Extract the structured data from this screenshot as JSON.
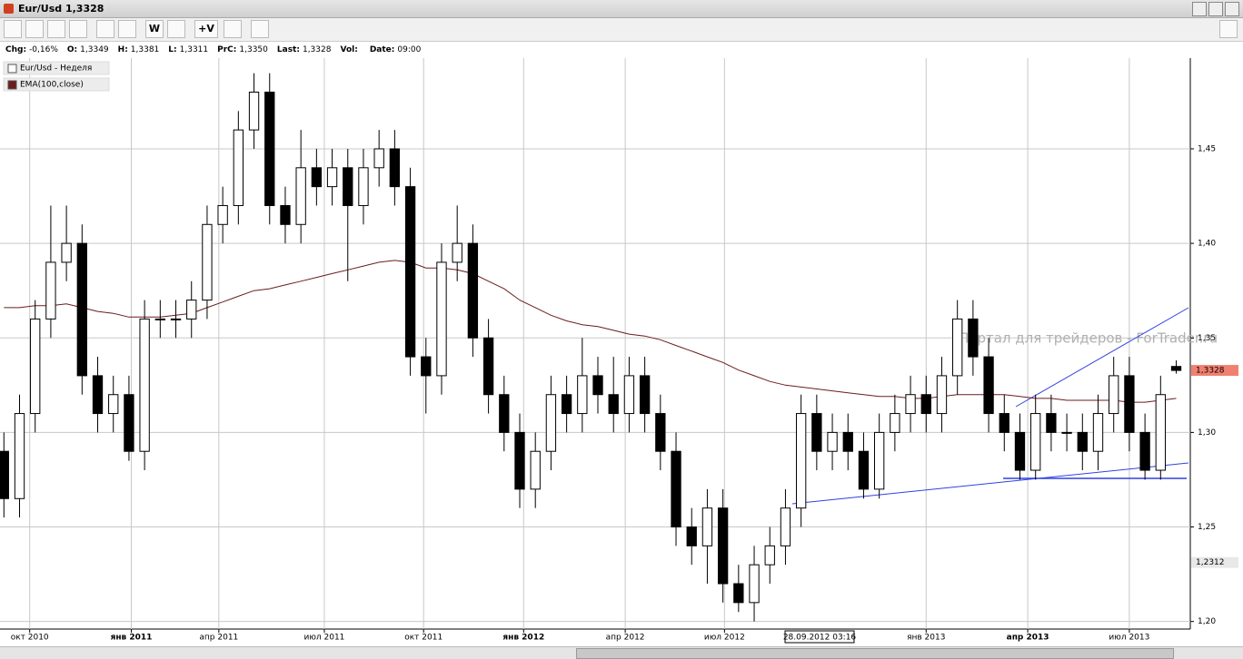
{
  "window": {
    "title": "Eur/Usd 1,3328"
  },
  "toolbar": {
    "buttons": [
      "W",
      "+V"
    ]
  },
  "info": [
    {
      "label": "Chg:",
      "value": "-0,16%"
    },
    {
      "label": "O:",
      "value": "1,3349"
    },
    {
      "label": "H:",
      "value": "1,3381"
    },
    {
      "label": "L:",
      "value": "1,3311"
    },
    {
      "label": "PrC:",
      "value": "1,3350"
    },
    {
      "label": "Last:",
      "value": "1,3328"
    },
    {
      "label": "Vol:"
    },
    {
      "label": "Date:",
      "value": "09:00"
    }
  ],
  "watermark": "Портал для трейдеров - ForTrader.ru",
  "cursor_label": "28.09.2012 03:16",
  "chart_data": {
    "type": "candlestick",
    "name": "Eur/Usd - Неделя",
    "up_color": "#ffffff",
    "down_color": "#000000",
    "x": [
      0,
      2,
      4,
      6,
      8,
      10,
      12,
      14,
      16,
      18,
      20,
      22,
      24,
      26,
      28,
      30,
      32,
      34,
      36,
      38,
      40,
      42,
      44,
      46,
      48,
      50,
      52,
      54,
      56,
      58,
      60,
      62,
      64,
      66,
      68,
      70,
      72,
      74,
      76,
      78,
      80,
      82,
      84,
      86,
      88,
      90,
      92,
      94,
      96,
      98,
      100,
      102,
      104,
      106,
      108,
      110,
      112,
      114,
      116,
      118,
      120,
      122,
      124,
      126,
      128,
      130,
      132,
      134,
      136,
      138,
      140,
      142,
      144,
      146,
      148,
      150
    ],
    "open": [
      1.29,
      1.265,
      1.31,
      1.36,
      1.39,
      1.4,
      1.33,
      1.31,
      1.32,
      1.29,
      1.36,
      1.36,
      1.36,
      1.37,
      1.41,
      1.42,
      1.46,
      1.48,
      1.42,
      1.41,
      1.44,
      1.43,
      1.44,
      1.42,
      1.44,
      1.45,
      1.43,
      1.34,
      1.33,
      1.39,
      1.4,
      1.35,
      1.32,
      1.3,
      1.27,
      1.29,
      1.32,
      1.31,
      1.33,
      1.32,
      1.31,
      1.33,
      1.31,
      1.29,
      1.25,
      1.24,
      1.26,
      1.22,
      1.21,
      1.23,
      1.24,
      1.26,
      1.31,
      1.29,
      1.3,
      1.29,
      1.27,
      1.3,
      1.31,
      1.32,
      1.31,
      1.33,
      1.36,
      1.34,
      1.31,
      1.3,
      1.28,
      1.31,
      1.3,
      1.3,
      1.29,
      1.31,
      1.33,
      1.3,
      1.28,
      1.3349
    ],
    "high": [
      1.3,
      1.32,
      1.37,
      1.42,
      1.42,
      1.41,
      1.34,
      1.33,
      1.33,
      1.37,
      1.37,
      1.37,
      1.38,
      1.42,
      1.43,
      1.47,
      1.49,
      1.49,
      1.43,
      1.46,
      1.45,
      1.45,
      1.45,
      1.45,
      1.46,
      1.46,
      1.44,
      1.35,
      1.4,
      1.42,
      1.41,
      1.36,
      1.33,
      1.31,
      1.3,
      1.33,
      1.33,
      1.35,
      1.34,
      1.34,
      1.34,
      1.34,
      1.32,
      1.3,
      1.26,
      1.27,
      1.27,
      1.23,
      1.24,
      1.25,
      1.27,
      1.32,
      1.32,
      1.31,
      1.31,
      1.3,
      1.31,
      1.32,
      1.33,
      1.33,
      1.34,
      1.37,
      1.37,
      1.35,
      1.32,
      1.31,
      1.32,
      1.32,
      1.31,
      1.31,
      1.32,
      1.34,
      1.34,
      1.31,
      1.33,
      1.3381
    ],
    "low": [
      1.255,
      1.255,
      1.3,
      1.35,
      1.38,
      1.32,
      1.3,
      1.3,
      1.285,
      1.28,
      1.35,
      1.35,
      1.35,
      1.36,
      1.4,
      1.41,
      1.45,
      1.41,
      1.4,
      1.4,
      1.42,
      1.42,
      1.38,
      1.41,
      1.43,
      1.42,
      1.33,
      1.31,
      1.32,
      1.38,
      1.34,
      1.31,
      1.29,
      1.26,
      1.26,
      1.28,
      1.3,
      1.3,
      1.31,
      1.3,
      1.3,
      1.3,
      1.28,
      1.24,
      1.23,
      1.22,
      1.21,
      1.205,
      1.2,
      1.22,
      1.23,
      1.25,
      1.28,
      1.28,
      1.28,
      1.265,
      1.265,
      1.29,
      1.3,
      1.3,
      1.3,
      1.32,
      1.33,
      1.3,
      1.29,
      1.275,
      1.275,
      1.29,
      1.29,
      1.28,
      1.28,
      1.3,
      1.29,
      1.275,
      1.275,
      1.3311
    ],
    "close": [
      1.265,
      1.31,
      1.36,
      1.39,
      1.4,
      1.33,
      1.31,
      1.32,
      1.29,
      1.36,
      1.36,
      1.36,
      1.37,
      1.41,
      1.42,
      1.46,
      1.48,
      1.42,
      1.41,
      1.44,
      1.43,
      1.44,
      1.42,
      1.44,
      1.45,
      1.43,
      1.34,
      1.33,
      1.39,
      1.4,
      1.35,
      1.32,
      1.3,
      1.27,
      1.29,
      1.32,
      1.31,
      1.33,
      1.32,
      1.31,
      1.33,
      1.31,
      1.29,
      1.25,
      1.24,
      1.26,
      1.22,
      1.21,
      1.23,
      1.24,
      1.26,
      1.31,
      1.29,
      1.3,
      1.29,
      1.27,
      1.3,
      1.31,
      1.32,
      1.31,
      1.33,
      1.36,
      1.34,
      1.31,
      1.3,
      1.28,
      1.31,
      1.3,
      1.3,
      1.29,
      1.31,
      1.33,
      1.3,
      1.28,
      1.32,
      1.3328
    ],
    "series": [
      {
        "name": "EMA(100,close)",
        "color": "#6b1c1c",
        "values": [
          1.366,
          1.366,
          1.367,
          1.367,
          1.368,
          1.366,
          1.364,
          1.363,
          1.361,
          1.361,
          1.361,
          1.362,
          1.363,
          1.366,
          1.369,
          1.372,
          1.375,
          1.376,
          1.378,
          1.38,
          1.382,
          1.384,
          1.386,
          1.388,
          1.39,
          1.391,
          1.39,
          1.387,
          1.387,
          1.386,
          1.384,
          1.38,
          1.376,
          1.37,
          1.366,
          1.362,
          1.359,
          1.357,
          1.356,
          1.354,
          1.352,
          1.351,
          1.349,
          1.346,
          1.343,
          1.34,
          1.337,
          1.333,
          1.33,
          1.327,
          1.325,
          1.324,
          1.323,
          1.322,
          1.321,
          1.32,
          1.319,
          1.319,
          1.318,
          1.318,
          1.319,
          1.32,
          1.32,
          1.32,
          1.32,
          1.319,
          1.318,
          1.318,
          1.317,
          1.317,
          1.317,
          1.317,
          1.316,
          1.316,
          1.317,
          1.318
        ]
      }
    ],
    "xlim": [
      -0.5,
      151.8
    ],
    "ylim": [
      1.498,
      1.196
    ],
    "xticks": [
      {
        "value": 3.3,
        "label": "окт 2010"
      },
      {
        "value": 16.3,
        "label": "янв 2011"
      },
      {
        "value": 27.5,
        "label": "апр 2011"
      },
      {
        "value": 41,
        "label": "июл 2011"
      },
      {
        "value": 53.7,
        "label": "окт 2011"
      },
      {
        "value": 66.5,
        "label": "янв 2012"
      },
      {
        "value": 79.5,
        "label": "апр 2012"
      },
      {
        "value": 92.2,
        "label": "июл 2012"
      },
      {
        "value": 118,
        "label": "янв 2013"
      },
      {
        "value": 131,
        "label": "апр 2013"
      },
      {
        "value": 144,
        "label": "июл 2013"
      }
    ],
    "yticks": [
      {
        "value": 1.2,
        "label": "1,20"
      },
      {
        "value": 1.25,
        "label": "1,25"
      },
      {
        "value": 1.3,
        "label": "1,30"
      },
      {
        "value": 1.35,
        "label": "1,35"
      },
      {
        "value": 1.4,
        "label": "1,40"
      },
      {
        "value": 1.45,
        "label": "1,45"
      }
    ],
    "price_labels": [
      {
        "value": 1.3328,
        "label": "1,3328",
        "color": "#f08070"
      },
      {
        "value": 1.2312,
        "label": "1,2312",
        "color": "#e8e8e8"
      }
    ],
    "grid": true
  }
}
